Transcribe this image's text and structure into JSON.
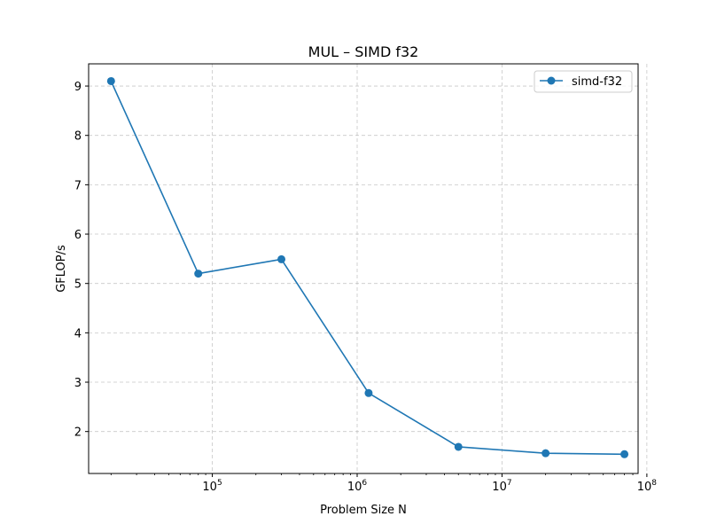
{
  "chart_data": {
    "type": "line",
    "title": "MUL – SIMD f32",
    "xlabel": "Problem Size N",
    "ylabel": "GFLOP/s",
    "xscale": "log",
    "xlim": [
      14000,
      87000000
    ],
    "ylim": [
      1.15,
      9.45
    ],
    "grid": true,
    "legend_position": "top-right",
    "x_ticks": [
      {
        "value": 100000,
        "base": "10",
        "exp": "5"
      },
      {
        "value": 1000000,
        "base": "10",
        "exp": "6"
      },
      {
        "value": 10000000,
        "base": "10",
        "exp": "7"
      },
      {
        "value": 100000000,
        "base": "10",
        "exp": "8"
      }
    ],
    "y_ticks": [
      2,
      3,
      4,
      5,
      6,
      7,
      8,
      9
    ],
    "series": [
      {
        "name": "simd-f32",
        "color": "#1f77b4",
        "marker": "circle",
        "x": [
          20000,
          80000,
          300000,
          1200000,
          5000000,
          20000000,
          70000000
        ],
        "y": [
          9.1,
          5.2,
          5.49,
          2.78,
          1.69,
          1.56,
          1.54
        ]
      }
    ]
  }
}
